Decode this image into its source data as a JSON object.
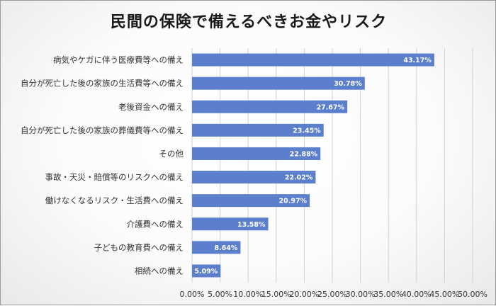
{
  "chart_data": {
    "type": "bar",
    "orientation": "horizontal",
    "title": "民間の保険で備えるべきお金やリスク",
    "categories": [
      "病気やケガに伴う医療費等への備え",
      "自分が死亡した後の家族の生活費等への備え",
      "老後資金への備え",
      "自分が死亡した後の家族の葬儀費等への備え",
      "その他",
      "事故・天災・賠償等のリスクへの備え",
      "働けなくなるリスク・生活費への備え",
      "介護費への備え",
      "子どもの教育費への備え",
      "相続への備え"
    ],
    "values": [
      43.17,
      30.78,
      27.67,
      23.45,
      22.88,
      22.02,
      20.97,
      13.58,
      8.64,
      5.09
    ],
    "value_labels": [
      "43.17%",
      "30.78%",
      "27.67%",
      "23.45%",
      "22.88%",
      "22.02%",
      "20.97%",
      "13.58%",
      "8.64%",
      "5.09%"
    ],
    "xlim": [
      0,
      50
    ],
    "xticks": [
      "0.00%",
      "5.00%",
      "10.00%",
      "15.00%",
      "20.00%",
      "25.00%",
      "30.00%",
      "35.00%",
      "40.00%",
      "45.00%",
      "50.00%"
    ],
    "grid": true,
    "bar_color": "#5b7fcc",
    "grid_color": "#d0d0d0"
  }
}
